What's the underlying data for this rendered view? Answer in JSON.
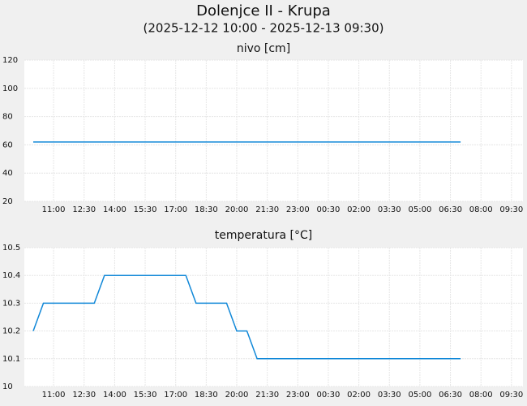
{
  "header": {
    "title": "Dolenjce II - Krupa",
    "subtitle": "(2025-12-12 10:00 - 2025-12-13 09:30)"
  },
  "chart_data": [
    {
      "type": "line",
      "title": "nivo [cm]",
      "x": [
        "10:00",
        "10:30",
        "11:00",
        "11:30",
        "12:00",
        "12:30",
        "13:00",
        "13:30",
        "14:00",
        "14:30",
        "15:00",
        "15:30",
        "16:00",
        "16:30",
        "17:00",
        "17:30",
        "18:00",
        "18:30",
        "19:00",
        "19:30",
        "20:00",
        "20:30",
        "21:00",
        "21:30",
        "22:00",
        "22:30",
        "23:00",
        "23:30",
        "00:00",
        "00:30",
        "01:00",
        "01:30",
        "02:00",
        "02:30",
        "03:00",
        "03:30",
        "04:00",
        "04:30",
        "05:00",
        "05:30",
        "06:00",
        "06:30",
        "07:00",
        "07:30",
        "08:00",
        "08:30",
        "09:00",
        "09:30"
      ],
      "series": [
        {
          "color": "#1188d8",
          "values": [
            62,
            62,
            62,
            62,
            62,
            62,
            62,
            62,
            62,
            62,
            62,
            62,
            62,
            62,
            62,
            62,
            62,
            62,
            62,
            62,
            62,
            62,
            62,
            62,
            62,
            62,
            62,
            62,
            62,
            62,
            62,
            62,
            62,
            62,
            62,
            62,
            62,
            62,
            62,
            62,
            62,
            62,
            62,
            null,
            null,
            null,
            null,
            null
          ]
        }
      ],
      "xticks": [
        "11:00",
        "12:30",
        "14:00",
        "15:30",
        "17:00",
        "18:30",
        "20:00",
        "21:30",
        "23:00",
        "00:30",
        "02:00",
        "03:30",
        "05:00",
        "06:30",
        "08:00",
        "09:30"
      ],
      "ylim": [
        20,
        120
      ],
      "yticks": [
        20,
        40,
        60,
        80,
        100,
        120
      ],
      "grid": true
    },
    {
      "type": "line",
      "title": "temperatura [°C]",
      "x": [
        "10:00",
        "10:30",
        "11:00",
        "11:30",
        "12:00",
        "12:30",
        "13:00",
        "13:30",
        "14:00",
        "14:30",
        "15:00",
        "15:30",
        "16:00",
        "16:30",
        "17:00",
        "17:30",
        "18:00",
        "18:30",
        "19:00",
        "19:30",
        "20:00",
        "20:30",
        "21:00",
        "21:30",
        "22:00",
        "22:30",
        "23:00",
        "23:30",
        "00:00",
        "00:30",
        "01:00",
        "01:30",
        "02:00",
        "02:30",
        "03:00",
        "03:30",
        "04:00",
        "04:30",
        "05:00",
        "05:30",
        "06:00",
        "06:30",
        "07:00",
        "07:30",
        "08:00",
        "08:30",
        "09:00",
        "09:30"
      ],
      "series": [
        {
          "color": "#1188d8",
          "values": [
            10.2,
            10.3,
            10.3,
            10.3,
            10.3,
            10.3,
            10.3,
            10.4,
            10.4,
            10.4,
            10.4,
            10.4,
            10.4,
            10.4,
            10.4,
            10.4,
            10.3,
            10.3,
            10.3,
            10.3,
            10.2,
            10.2,
            10.1,
            10.1,
            10.1,
            10.1,
            10.1,
            10.1,
            10.1,
            10.1,
            10.1,
            10.1,
            10.1,
            10.1,
            10.1,
            10.1,
            10.1,
            10.1,
            10.1,
            10.1,
            10.1,
            10.1,
            10.1,
            null,
            null,
            null,
            null,
            null
          ]
        }
      ],
      "xticks": [
        "11:00",
        "12:30",
        "14:00",
        "15:30",
        "17:00",
        "18:30",
        "20:00",
        "21:30",
        "23:00",
        "00:30",
        "02:00",
        "03:30",
        "05:00",
        "06:30",
        "08:00",
        "09:30"
      ],
      "ylim": [
        10,
        10.5
      ],
      "yticks": [
        10,
        10.1,
        10.2,
        10.3,
        10.4,
        10.5
      ],
      "grid": true
    }
  ]
}
